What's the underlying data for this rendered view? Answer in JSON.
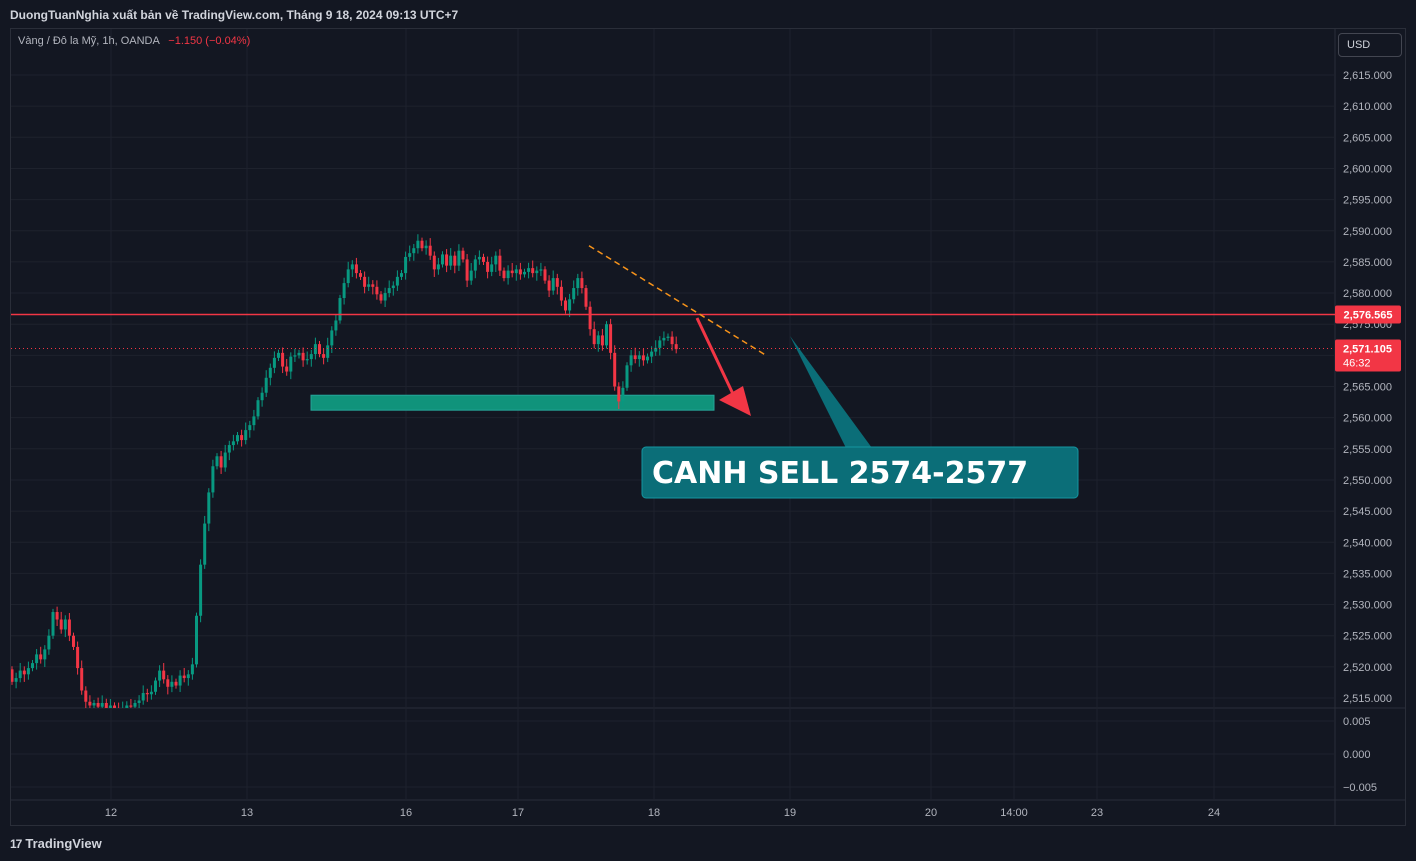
{
  "header": {
    "title": "DuongTuanNghia xuất bản về TradingView.com, Tháng 9 18, 2024 09:13 UTC+7"
  },
  "legend": {
    "symbol": "Vàng / Đô la Mỹ, 1h, OANDA",
    "change": "−1.150 (−0.04%)"
  },
  "currency_button": "USD",
  "footer": {
    "brand": "TradingView",
    "logo_glyph": "17"
  },
  "colors": {
    "background": "#131722",
    "up": "#089981",
    "down": "#f23645",
    "grid": "#1e222d",
    "trendline": "#f7931a",
    "annotation": "#0b6e78",
    "zone": "#10937b"
  },
  "annotation": {
    "text": "CANH SELL 2574-2577"
  },
  "chart_data": {
    "type": "candlestick",
    "price_axis": {
      "ticks": [
        "2,615.000",
        "2,610.000",
        "2,605.000",
        "2,600.000",
        "2,595.000",
        "2,590.000",
        "2,585.000",
        "2,580.000",
        "2,575.000",
        "2,570.000",
        "2,565.000",
        "2,560.000",
        "2,555.000",
        "2,550.000",
        "2,545.000",
        "2,540.000",
        "2,535.000",
        "2,530.000",
        "2,525.000",
        "2,520.000",
        "2,515.000"
      ],
      "ylim": [
        2512.5,
        2618
      ]
    },
    "indicator_axis": {
      "ticks": [
        "0.005",
        "0.000",
        "−0.005"
      ]
    },
    "time_axis": {
      "ticks": [
        "12",
        "13",
        "16",
        "17",
        "18",
        "19",
        "20",
        "14:00",
        "23",
        "24"
      ]
    },
    "price_labels": [
      {
        "value": 2576.565,
        "text": "2,576.565",
        "color": "#f23645"
      },
      {
        "value": 2571.105,
        "text": "2,571.105",
        "countdown": "46:32",
        "color": "#f23645"
      }
    ],
    "resistance_line": 2576.565,
    "support_zone": [
      2561.2,
      2563.6
    ],
    "trendline": [
      {
        "x": 589,
        "price": 2587.6
      },
      {
        "x": 766,
        "price": 2570.0
      }
    ],
    "candles": {
      "start": 2519.6,
      "moves": [
        -2.0,
        0.6,
        1.2,
        -0.6,
        1.0,
        0.8,
        1.4,
        -0.8,
        1.6,
        2.2,
        3.8,
        -1.2,
        -1.6,
        1.6,
        -2.6,
        -1.8,
        -3.4,
        -3.6,
        -1.8,
        -0.6,
        0.4,
        -0.6,
        0.6,
        -0.8,
        0.4,
        -0.4,
        -0.6,
        0.4,
        0.6,
        -0.2,
        0.6,
        0.4,
        1.2,
        -0.2,
        0.4,
        1.8,
        1.6,
        -1.4,
        -1.2,
        0.8,
        -0.6,
        1.6,
        -0.4,
        0.6,
        1.6,
        7.8,
        8.2,
        6.6,
        5.0,
        4.2,
        1.6,
        -1.8,
        2.4,
        1.2,
        0.6,
        1.0,
        -0.8,
        1.6,
        0.8,
        1.4,
        2.6,
        1.2,
        2.4,
        1.6,
        1.6,
        0.8,
        -2.2,
        -0.8,
        2.4,
        0.2,
        0.4,
        -1.2,
        0.2,
        0.8,
        1.6,
        -1.6,
        -0.6,
        2.0,
        2.4,
        1.6,
        3.6,
        2.4,
        2.2,
        0.8,
        -1.4,
        -0.6,
        -1.6,
        0.4,
        -0.4,
        -1.2,
        -1.0,
        1.2,
        0.8,
        0.4,
        1.4,
        0.6,
        2.6,
        0.6,
        0.8,
        1.2,
        -1.2,
        0.4,
        -1.6,
        -2.2,
        0.8,
        1.6,
        -1.8,
        1.6,
        -1.6,
        2.4,
        -1.4,
        -3.4,
        1.6,
        1.8,
        0.4,
        -0.8,
        -1.6,
        1.2,
        1.4,
        -2.4,
        -1.2,
        1.2,
        -0.4,
        0.6,
        -0.8,
        0.4,
        0.6,
        -0.8,
        0.4,
        0.2,
        -1.8,
        -1.6,
        2.0,
        -1.4,
        -2.2,
        -1.6,
        1.8,
        1.8,
        1.6,
        -1.6,
        -3.0,
        -3.6,
        -2.4,
        1.4,
        -1.6,
        3.4,
        -4.6,
        -5.4,
        -2.4,
        2.2,
        3.6,
        1.6,
        -0.6,
        0.6,
        -0.8,
        0.6,
        0.8,
        0.6,
        1.2,
        0.4,
        0.2,
        -1.2,
        -0.8
      ],
      "first_x": 12,
      "spacing": 4.1
    }
  }
}
